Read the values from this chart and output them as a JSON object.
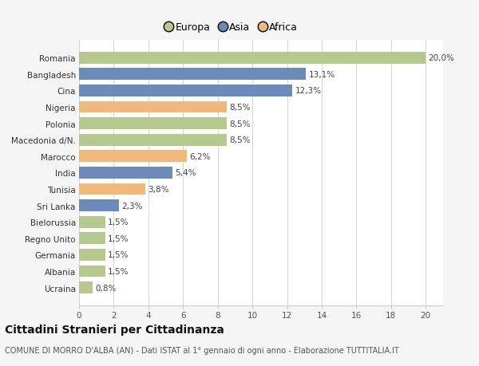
{
  "countries": [
    "Romania",
    "Bangladesh",
    "Cina",
    "Nigeria",
    "Polonia",
    "Macedonia d/N.",
    "Marocco",
    "India",
    "Tunisia",
    "Sri Lanka",
    "Bielorussia",
    "Regno Unito",
    "Germania",
    "Albania",
    "Ucraina"
  ],
  "values": [
    20.0,
    13.1,
    12.3,
    8.5,
    8.5,
    8.5,
    6.2,
    5.4,
    3.8,
    2.3,
    1.5,
    1.5,
    1.5,
    1.5,
    0.8
  ],
  "labels": [
    "20,0%",
    "13,1%",
    "12,3%",
    "8,5%",
    "8,5%",
    "8,5%",
    "6,2%",
    "5,4%",
    "3,8%",
    "2,3%",
    "1,5%",
    "1,5%",
    "1,5%",
    "1,5%",
    "0,8%"
  ],
  "continents": [
    "Europa",
    "Asia",
    "Asia",
    "Africa",
    "Europa",
    "Europa",
    "Africa",
    "Asia",
    "Africa",
    "Asia",
    "Europa",
    "Europa",
    "Europa",
    "Europa",
    "Europa"
  ],
  "colors": {
    "Europa": "#b5c98e",
    "Asia": "#6b8cba",
    "Africa": "#f0b87a"
  },
  "title": "Cittadini Stranieri per Cittadinanza",
  "subtitle": "COMUNE DI MORRO D'ALBA (AN) - Dati ISTAT al 1° gennaio di ogni anno - Elaborazione TUTTITALIA.IT",
  "xlim": [
    0,
    21
  ],
  "xticks": [
    0,
    2,
    4,
    6,
    8,
    10,
    12,
    14,
    16,
    18,
    20
  ],
  "background_color": "#f5f5f5",
  "bar_background": "#ffffff",
  "grid_color": "#cccccc",
  "label_fontsize": 7.5,
  "tick_fontsize": 7.5,
  "title_fontsize": 10,
  "subtitle_fontsize": 7
}
